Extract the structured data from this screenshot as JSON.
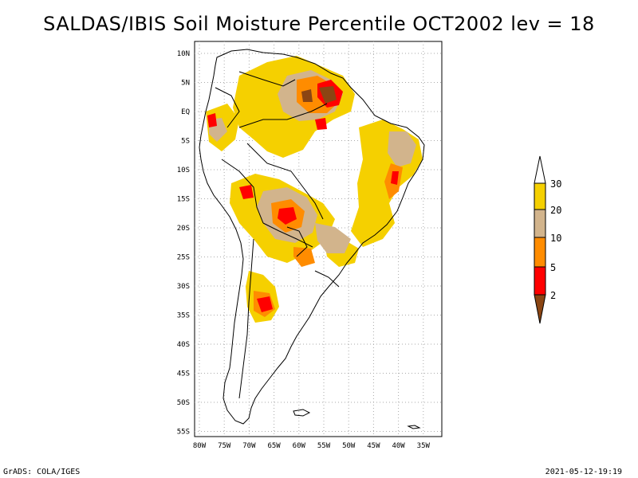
{
  "title": "SALDAS/IBIS Soil Moisture Percentile OCT2002 lev = 18",
  "footer": {
    "left": "GrADS: COLA/IGES",
    "right": "2021-05-12-19:19"
  },
  "map": {
    "region": "South America",
    "lat_labels": [
      "10N",
      "5N",
      "EQ",
      "5S",
      "10S",
      "15S",
      "20S",
      "25S",
      "30S",
      "35S",
      "40S",
      "45S",
      "50S",
      "55S"
    ],
    "lon_labels": [
      "80W",
      "75W",
      "70W",
      "65W",
      "60W",
      "55W",
      "50W",
      "45W",
      "40W",
      "35W"
    ]
  },
  "legend": {
    "labels": [
      "30",
      "20",
      "10",
      "5",
      "2"
    ],
    "colors": {
      "above30": "#ffffff",
      "p20_30": "#f5d000",
      "p10_20": "#d2b48c",
      "p5_10": "#ff8c00",
      "p2_5": "#ff0000",
      "below2": "#8b4513"
    }
  },
  "colors": {
    "frame": "#000000",
    "grid": "#aaaaaa",
    "coast": "#000000"
  }
}
